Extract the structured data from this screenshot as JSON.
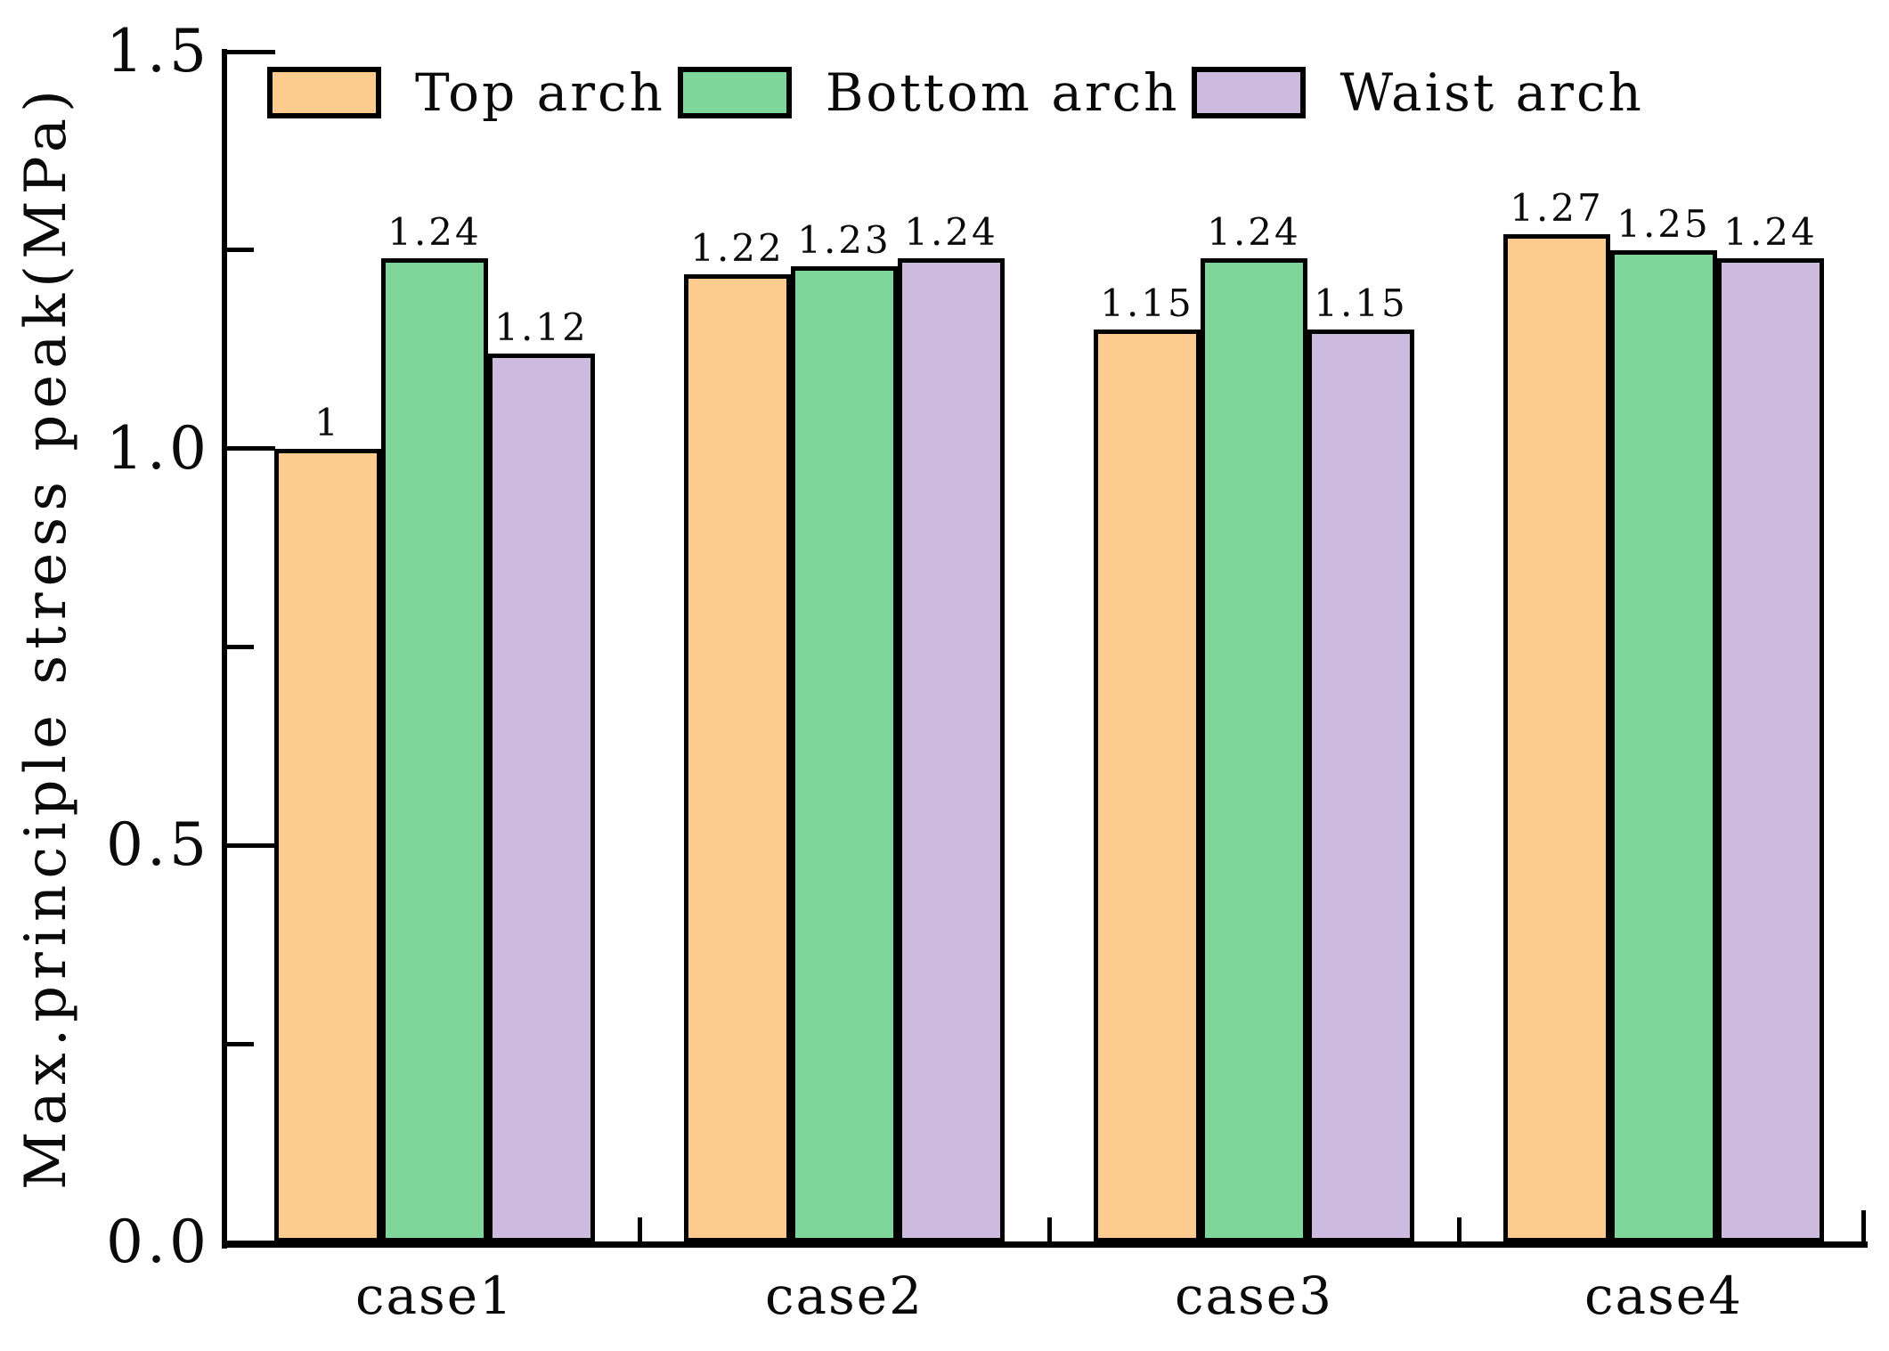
{
  "figure": {
    "background_color": "#ffffff",
    "text_color": "#0a0a0a",
    "axis_color": "#000000"
  },
  "chart_data": {
    "type": "bar",
    "title": "",
    "xlabel": "",
    "ylabel": "Max.principle stress peak(MPa)",
    "categories": [
      "case1",
      "case2",
      "case3",
      "case4"
    ],
    "series": [
      {
        "name": "Top arch",
        "color": "#FCCB8D",
        "values": [
          1.0,
          1.22,
          1.15,
          1.27
        ],
        "labels": [
          "1",
          "1.22",
          "1.15",
          "1.27"
        ]
      },
      {
        "name": "Bottom arch",
        "color": "#7ED69B",
        "values": [
          1.24,
          1.23,
          1.24,
          1.25
        ],
        "labels": [
          "1.24",
          "1.23",
          "1.24",
          "1.25"
        ]
      },
      {
        "name": "Waist arch",
        "color": "#CDBADF",
        "values": [
          1.12,
          1.24,
          1.15,
          1.24
        ],
        "labels": [
          "1.12",
          "1.24",
          "1.15",
          "1.24"
        ]
      }
    ],
    "ylim": [
      0,
      1.5
    ],
    "yticks": {
      "major": [
        {
          "value": 0.0,
          "label": "0.0"
        },
        {
          "value": 0.5,
          "label": "0.5"
        },
        {
          "value": 1.0,
          "label": "1.0"
        },
        {
          "value": 1.5,
          "label": "1.5"
        }
      ],
      "minor": [
        0.25,
        0.75,
        1.25
      ]
    },
    "grid": "off",
    "legend_position": "top-left-inside",
    "bar_edge_color": "#000000"
  }
}
